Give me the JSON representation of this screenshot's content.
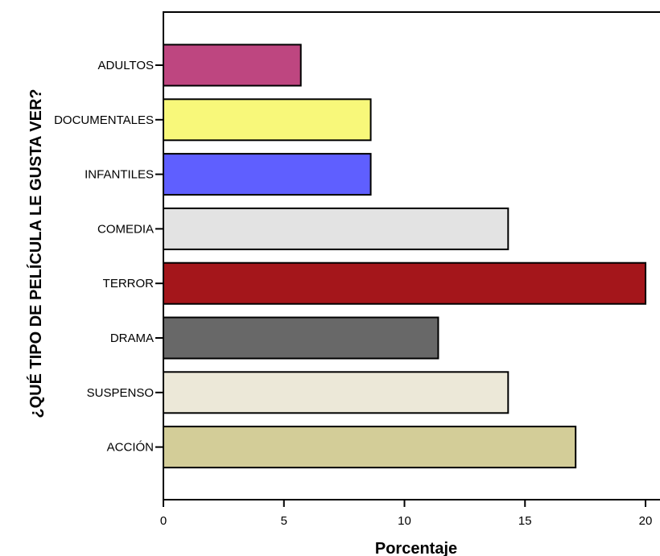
{
  "chart_data": {
    "type": "bar",
    "orientation": "horizontal",
    "title": "",
    "xlabel": "Porcentaje",
    "ylabel": "¿QUÉ TIPO DE PELÍCULA LE GUSTA VER?",
    "xlim": [
      0,
      20.6
    ],
    "xticks": [
      0,
      5,
      10,
      15,
      20
    ],
    "grid": false,
    "legend": "none",
    "categories": [
      "ADULTOS",
      "DOCUMENTALES",
      "INFANTILES",
      "COMEDIA",
      "TERROR",
      "DRAMA",
      "SUSPENSO",
      "ACCIÓN"
    ],
    "values": [
      5.7,
      8.6,
      8.6,
      14.3,
      20.0,
      11.4,
      14.3,
      17.1
    ],
    "colors": [
      "#be4680",
      "#f8f87a",
      "#5f5fff",
      "#e3e3e3",
      "#a4161b",
      "#686868",
      "#ece8d8",
      "#d3cd98"
    ]
  }
}
